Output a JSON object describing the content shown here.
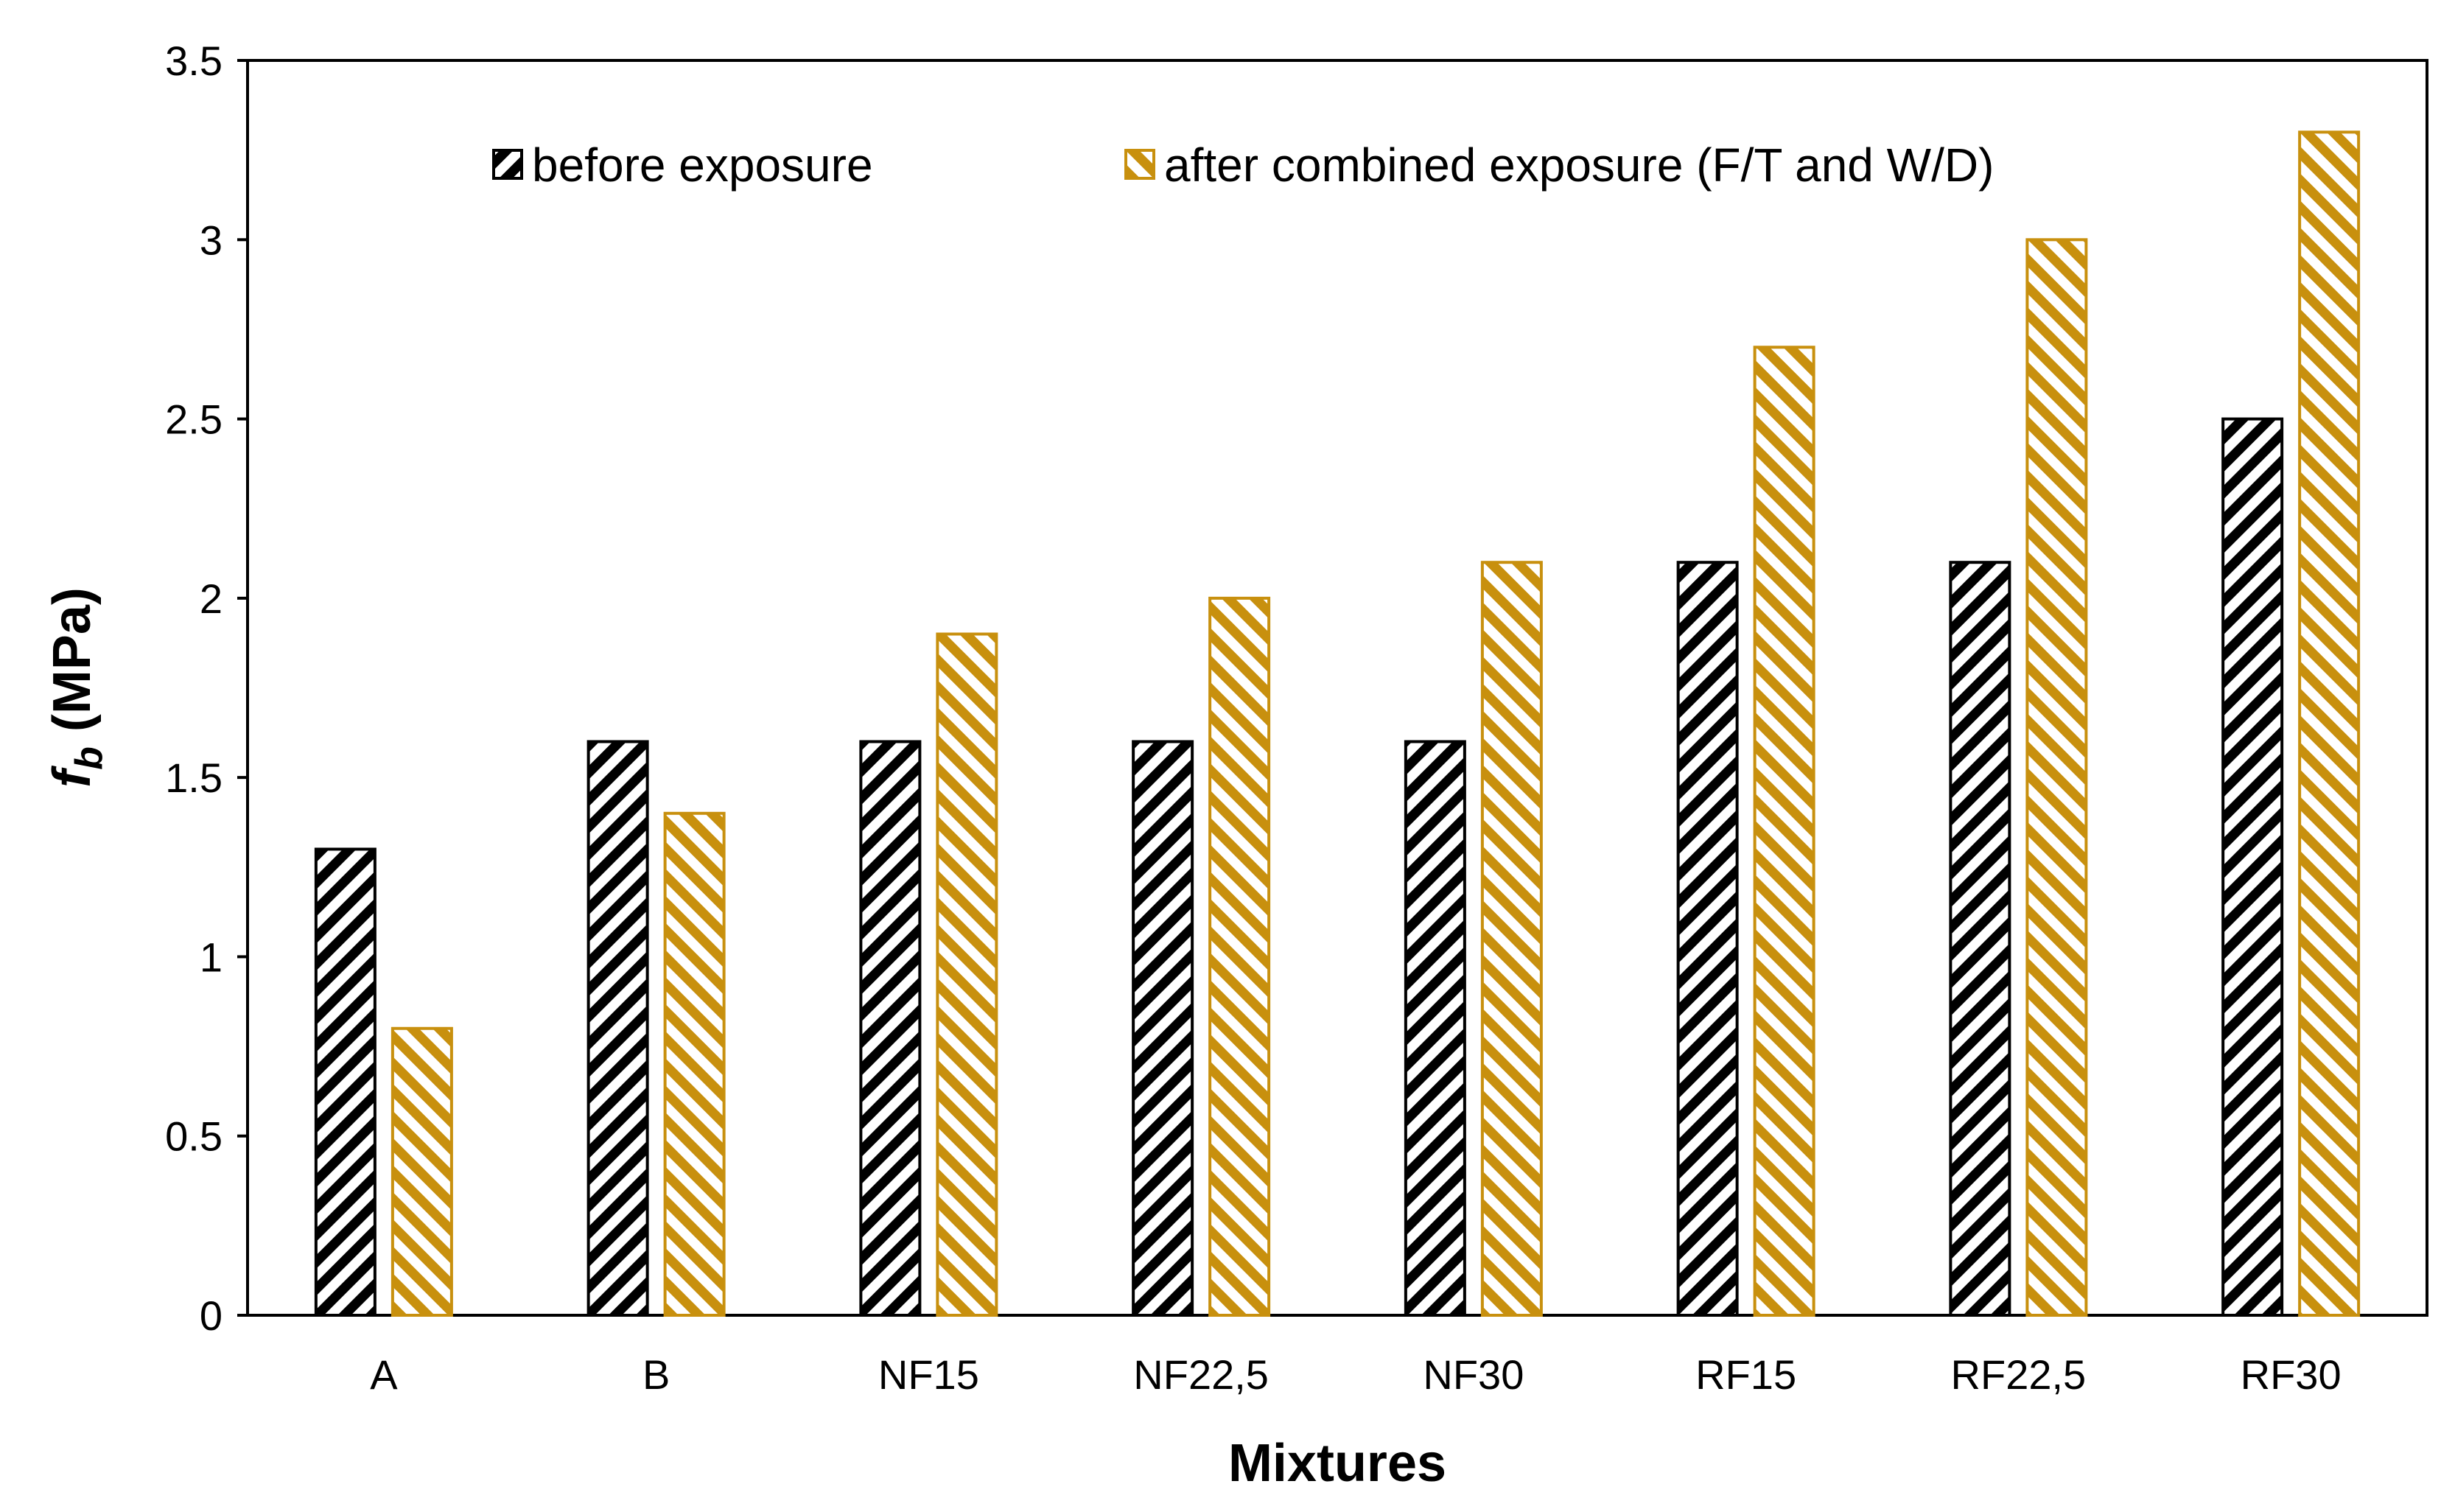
{
  "chart_data": {
    "type": "bar",
    "title": "",
    "xlabel": "Mixtures",
    "ylabel_main": "f",
    "ylabel_sub": "b",
    "ylabel_unit": " (MPa)",
    "categories": [
      "A",
      "B",
      "NF15",
      "NF22,5",
      "NF30",
      "RF15",
      "RF22,5",
      "RF30"
    ],
    "series": [
      {
        "name": "before exposure",
        "color": "#000000",
        "values": [
          1.3,
          1.6,
          1.6,
          1.6,
          1.6,
          2.1,
          2.1,
          2.5
        ]
      },
      {
        "name": "after combined exposure (F/T and W/D)",
        "color": "#C8900E",
        "values": [
          0.8,
          1.4,
          1.9,
          2.0,
          2.1,
          2.7,
          3.0,
          3.3
        ]
      }
    ],
    "ylim": [
      0,
      3.5
    ],
    "yticks": [
      0,
      0.5,
      1,
      1.5,
      2,
      2.5,
      3,
      3.5
    ],
    "ytick_labels": [
      "0",
      "0.5",
      "1",
      "1.5",
      "2",
      "2.5",
      "3",
      "3.5"
    ],
    "grid": false,
    "legend_position": "top",
    "pattern": "diagonal-hatch"
  }
}
